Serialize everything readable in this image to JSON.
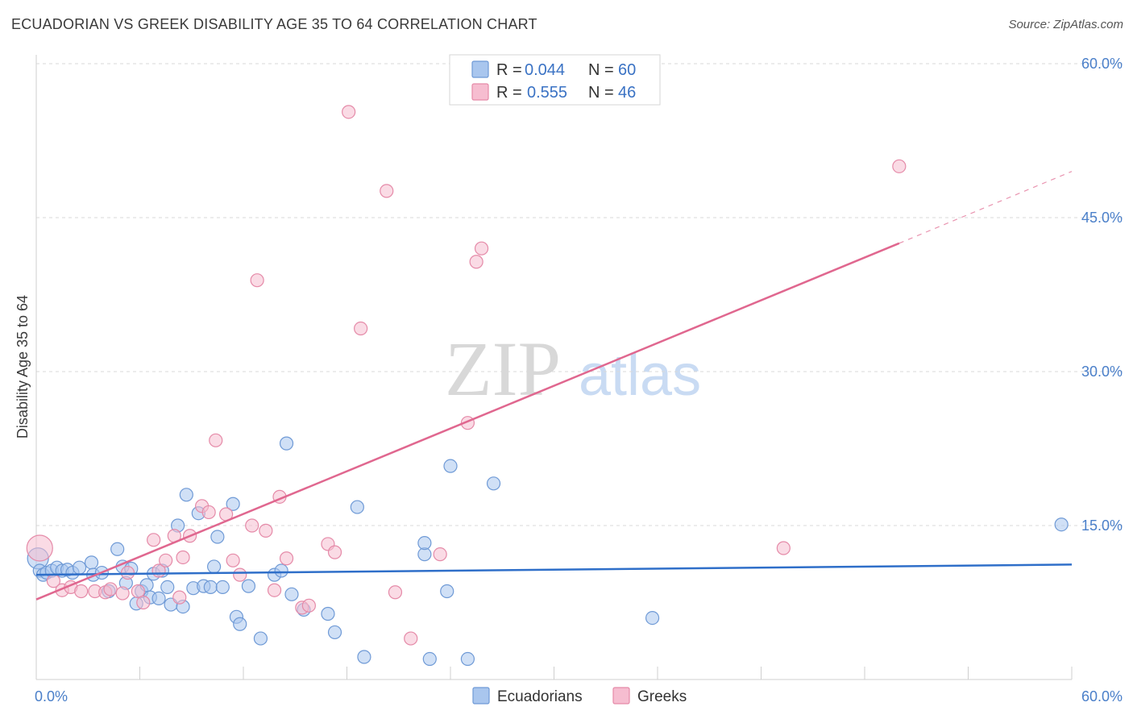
{
  "title": "ECUADORIAN VS GREEK DISABILITY AGE 35 TO 64 CORRELATION CHART",
  "source": "Source: ZipAtlas.com",
  "watermark": {
    "zip": "ZIP",
    "atlas": "atlas"
  },
  "legend": {
    "rows": [
      {
        "r_label": "R =",
        "r_value": "0.044",
        "n_label": "N =",
        "n_value": "60"
      },
      {
        "r_label": "R =",
        "r_value": "0.555",
        "n_label": "N =",
        "n_value": "46"
      }
    ]
  },
  "colors": {
    "ecuadorians_fill": "#a9c6ee",
    "ecuadorians_stroke": "#6f9ad6",
    "ecuadorians_line": "#2f6fc9",
    "greeks_fill": "#f6bdd0",
    "greeks_stroke": "#e58aa8",
    "greeks_line": "#e0678f",
    "grid": "#d9d9d9",
    "axis_text": "#4a7fc9"
  },
  "chart_data": {
    "type": "scatter",
    "title": "ECUADORIAN VS GREEK DISABILITY AGE 35 TO 64 CORRELATION CHART",
    "xlabel": "",
    "ylabel": "Disability Age 35 to 64",
    "xlim": [
      0,
      60
    ],
    "ylim": [
      0,
      60
    ],
    "x_tick_labels": [
      "0.0%",
      "60.0%"
    ],
    "y_ticks": [
      15,
      30,
      45,
      60
    ],
    "y_tick_labels": [
      "15.0%",
      "30.0%",
      "45.0%",
      "60.0%"
    ],
    "series": [
      {
        "name": "Ecuadorians",
        "r": 0.044,
        "n": 60,
        "trend": {
          "x1": 0,
          "y1": 10.2,
          "x2": 60,
          "y2": 11.2
        },
        "points": [
          [
            0.1,
            11.8
          ],
          [
            0.2,
            10.6
          ],
          [
            0.4,
            10.2
          ],
          [
            0.6,
            10.4
          ],
          [
            0.9,
            10.6
          ],
          [
            1.2,
            10.9
          ],
          [
            1.5,
            10.6
          ],
          [
            1.8,
            10.7
          ],
          [
            2.1,
            10.4
          ],
          [
            2.5,
            10.9
          ],
          [
            3.2,
            11.4
          ],
          [
            3.3,
            10.2
          ],
          [
            3.8,
            10.4
          ],
          [
            4.2,
            8.6
          ],
          [
            4.7,
            12.7
          ],
          [
            5.0,
            11.0
          ],
          [
            5.2,
            9.4
          ],
          [
            5.5,
            10.8
          ],
          [
            5.8,
            7.4
          ],
          [
            6.1,
            8.6
          ],
          [
            6.4,
            9.2
          ],
          [
            6.6,
            8.0
          ],
          [
            6.8,
            10.3
          ],
          [
            7.1,
            7.9
          ],
          [
            7.3,
            10.6
          ],
          [
            7.6,
            9.0
          ],
          [
            7.8,
            7.3
          ],
          [
            8.2,
            15.0
          ],
          [
            8.5,
            7.1
          ],
          [
            8.7,
            18.0
          ],
          [
            9.1,
            8.9
          ],
          [
            9.4,
            16.2
          ],
          [
            9.7,
            9.1
          ],
          [
            10.1,
            9.0
          ],
          [
            10.3,
            11.0
          ],
          [
            10.5,
            13.9
          ],
          [
            10.8,
            9.0
          ],
          [
            11.4,
            17.1
          ],
          [
            11.6,
            6.1
          ],
          [
            11.8,
            5.4
          ],
          [
            12.3,
            9.1
          ],
          [
            13.0,
            4.0
          ],
          [
            13.8,
            10.2
          ],
          [
            14.2,
            10.6
          ],
          [
            14.5,
            23.0
          ],
          [
            14.8,
            8.3
          ],
          [
            15.5,
            6.8
          ],
          [
            16.9,
            6.4
          ],
          [
            17.3,
            4.6
          ],
          [
            18.6,
            16.8
          ],
          [
            19.0,
            2.2
          ],
          [
            22.5,
            12.2
          ],
          [
            22.5,
            13.3
          ],
          [
            22.8,
            2.0
          ],
          [
            23.8,
            8.6
          ],
          [
            24.0,
            20.8
          ],
          [
            25.0,
            2.0
          ],
          [
            26.5,
            19.1
          ],
          [
            35.7,
            6.0
          ],
          [
            59.4,
            15.1
          ]
        ]
      },
      {
        "name": "Greeks",
        "r": 0.555,
        "n": 46,
        "trend": {
          "x1": 0,
          "y1": 7.8,
          "x2": 50,
          "y2": 42.5
        },
        "trend_dashed": {
          "x1": 50,
          "y1": 42.5,
          "x2": 60,
          "y2": 49.5
        },
        "points": [
          [
            0.2,
            12.8
          ],
          [
            1.0,
            9.6
          ],
          [
            1.5,
            8.7
          ],
          [
            2.0,
            9.0
          ],
          [
            2.6,
            8.6
          ],
          [
            3.4,
            8.6
          ],
          [
            4.0,
            8.5
          ],
          [
            4.3,
            8.8
          ],
          [
            5.0,
            8.4
          ],
          [
            5.3,
            10.4
          ],
          [
            5.9,
            8.6
          ],
          [
            6.2,
            7.5
          ],
          [
            6.8,
            13.6
          ],
          [
            7.1,
            10.6
          ],
          [
            7.5,
            11.6
          ],
          [
            8.0,
            14.0
          ],
          [
            8.3,
            8.0
          ],
          [
            8.5,
            11.9
          ],
          [
            8.9,
            14.0
          ],
          [
            9.6,
            16.9
          ],
          [
            10.0,
            16.3
          ],
          [
            10.4,
            23.3
          ],
          [
            11.0,
            16.1
          ],
          [
            11.4,
            11.6
          ],
          [
            11.8,
            10.2
          ],
          [
            12.5,
            15.0
          ],
          [
            12.8,
            38.9
          ],
          [
            13.3,
            14.5
          ],
          [
            13.8,
            8.7
          ],
          [
            14.1,
            17.8
          ],
          [
            14.5,
            11.8
          ],
          [
            15.4,
            7.0
          ],
          [
            15.8,
            7.2
          ],
          [
            16.9,
            13.2
          ],
          [
            17.3,
            12.4
          ],
          [
            18.1,
            55.3
          ],
          [
            18.8,
            34.2
          ],
          [
            20.3,
            47.6
          ],
          [
            20.8,
            8.5
          ],
          [
            21.7,
            4.0
          ],
          [
            23.4,
            12.2
          ],
          [
            25.0,
            25.0
          ],
          [
            25.5,
            40.7
          ],
          [
            25.8,
            42.0
          ],
          [
            43.3,
            12.8
          ],
          [
            50.0,
            50.0
          ]
        ]
      }
    ]
  }
}
